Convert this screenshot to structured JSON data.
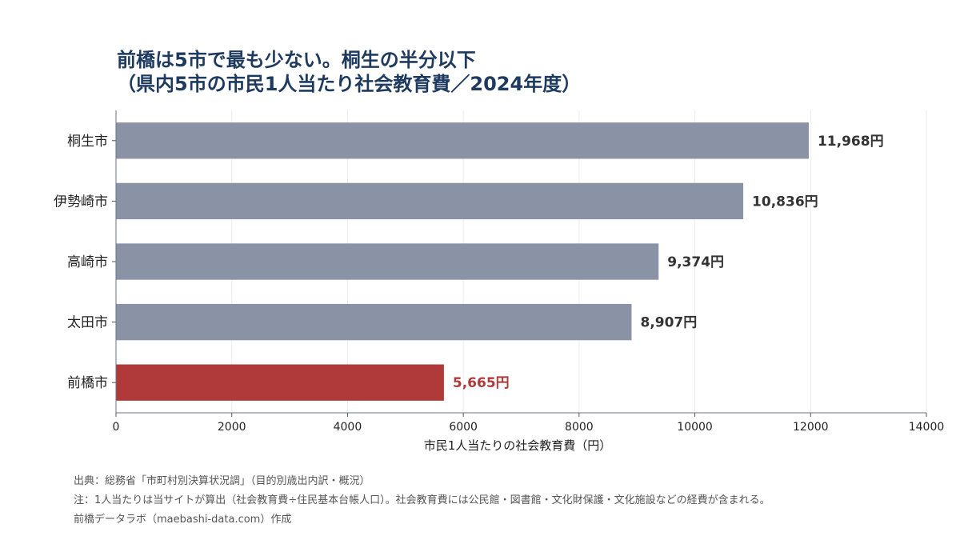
{
  "title_line1": "前橋は5市で最も少ない。桐生の半分以下",
  "title_line2": "（県内5市の市民1人当たり社会教育費／2024年度）",
  "chart_data": {
    "type": "bar",
    "orientation": "horizontal",
    "categories": [
      "桐生市",
      "伊勢崎市",
      "高崎市",
      "太田市",
      "前橋市"
    ],
    "values": [
      11968,
      10836,
      9374,
      8907,
      5665
    ],
    "value_labels": [
      "11,968円",
      "10,836円",
      "9,374円",
      "8,907円",
      "5,665円"
    ],
    "highlight": "前橋市",
    "xlabel": "市民1人当たりの社会教育費（円）",
    "ylabel": "",
    "xlim": [
      0,
      14000
    ],
    "xticks": [
      0,
      2000,
      4000,
      6000,
      8000,
      10000,
      12000,
      14000
    ],
    "grid": "vertical",
    "colors": {
      "default": "#8a93a5",
      "highlight": "#b03a3a",
      "label_default": "#333333"
    }
  },
  "footer": {
    "source": "出典：総務省「市町村別決算状況調」（目的別歳出内訳・概況）",
    "note": "注：1人当たりは当サイトが算出（社会教育費÷住民基本台帳人口）。社会教育費には公民館・図書館・文化財保護・文化施設などの経費が含まれる。",
    "credit": "前橋データラボ（maebashi-data.com）作成"
  }
}
